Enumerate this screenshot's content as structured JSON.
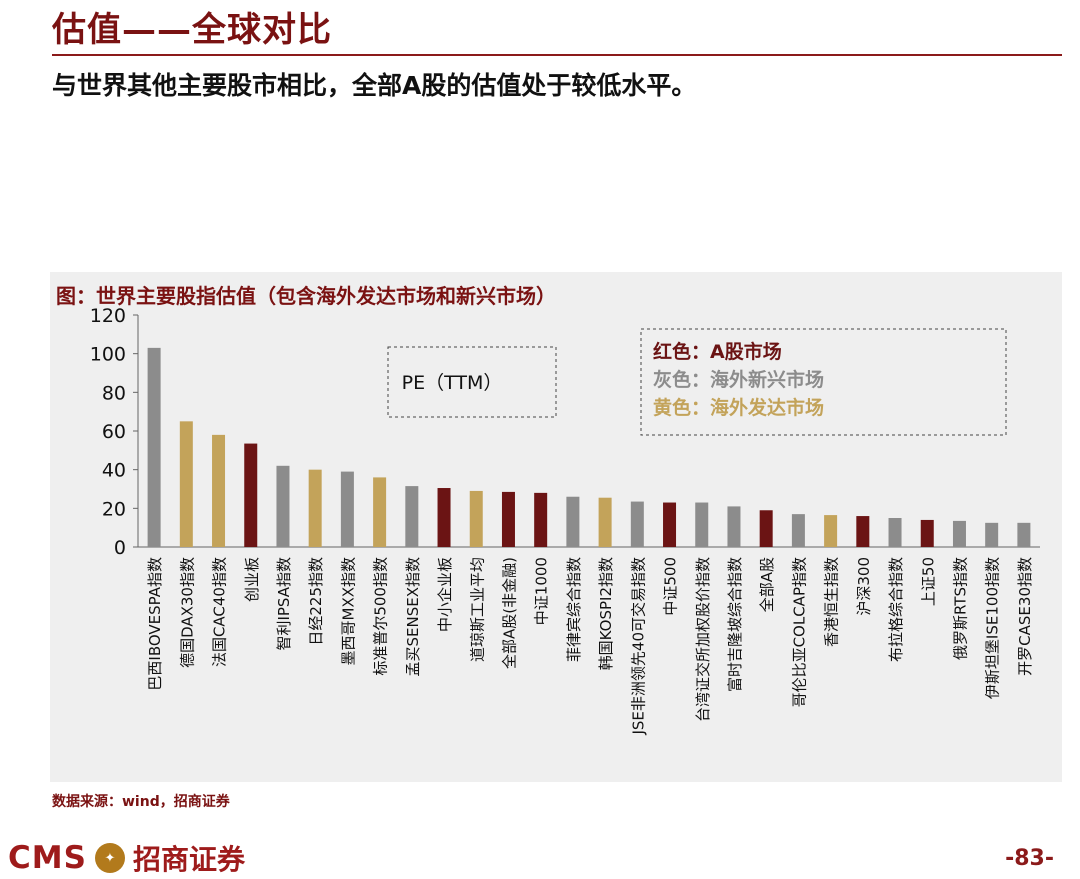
{
  "header": {
    "title": "估值——全球对比",
    "subtitle": "与世界其他主要股市相比，全部A股的估值处于较低水平。"
  },
  "colors": {
    "a_share": "#6b1414",
    "emerging": "#8c8c8c",
    "developed": "#c3a35a",
    "brand": "#8b1a1a"
  },
  "chart_data": {
    "type": "bar",
    "title": "图：世界主要股指估值（包含海外发达市场和新兴市场）",
    "annotation": "PE（TTM）",
    "ylim": [
      0,
      120
    ],
    "yticks": [
      0,
      20,
      40,
      60,
      80,
      100,
      120
    ],
    "legend": {
      "placement": "top-right",
      "items": [
        {
          "label": "红色：A股市场",
          "group": "a_share"
        },
        {
          "label": "灰色：海外新兴市场",
          "group": "emerging"
        },
        {
          "label": "黄色：海外发达市场",
          "group": "developed"
        }
      ]
    },
    "categories": [
      "巴西IBOVESPA指数",
      "德国DAX30指数",
      "法国CAC40指数",
      "创业板",
      "智利IPSA指数",
      "日经225指数",
      "墨西哥MXX指数",
      "标准普尔500指数",
      "孟买SENSEX指数",
      "中小企业板",
      "道琼斯工业平均",
      "全部A股(非金融)",
      "中证1000",
      "菲律宾综合指数",
      "韩国KOSPI2指数",
      "JSE非洲领先40可交易指数",
      "中证500",
      "台湾证交所加权股价指数",
      "富时吉隆坡综合指数",
      "全部A股",
      "哥伦比亚COLCAP指数",
      "香港恒生指数",
      "沪深300",
      "布拉格综合指数",
      "上证50",
      "俄罗斯RTS指数",
      "伊斯坦堡ISE100指数",
      "开罗CASE30指数"
    ],
    "values": [
      103,
      65,
      58,
      53.5,
      42,
      40,
      39,
      36,
      31.5,
      30.5,
      29,
      28.5,
      28,
      26,
      25.5,
      23.5,
      23,
      23,
      21,
      19,
      17,
      16.5,
      16,
      15,
      14,
      13.5,
      12.5,
      12.5
    ],
    "groups": [
      "emerging",
      "developed",
      "developed",
      "a_share",
      "emerging",
      "developed",
      "emerging",
      "developed",
      "emerging",
      "a_share",
      "developed",
      "a_share",
      "a_share",
      "emerging",
      "developed",
      "emerging",
      "a_share",
      "emerging",
      "emerging",
      "a_share",
      "emerging",
      "developed",
      "a_share",
      "emerging",
      "a_share",
      "emerging",
      "emerging",
      "emerging"
    ]
  },
  "footer": {
    "source": "数据来源：wind，招商证券",
    "logo_latin": "CMS",
    "logo_cn": "招商证券",
    "page_number": "-83-"
  }
}
